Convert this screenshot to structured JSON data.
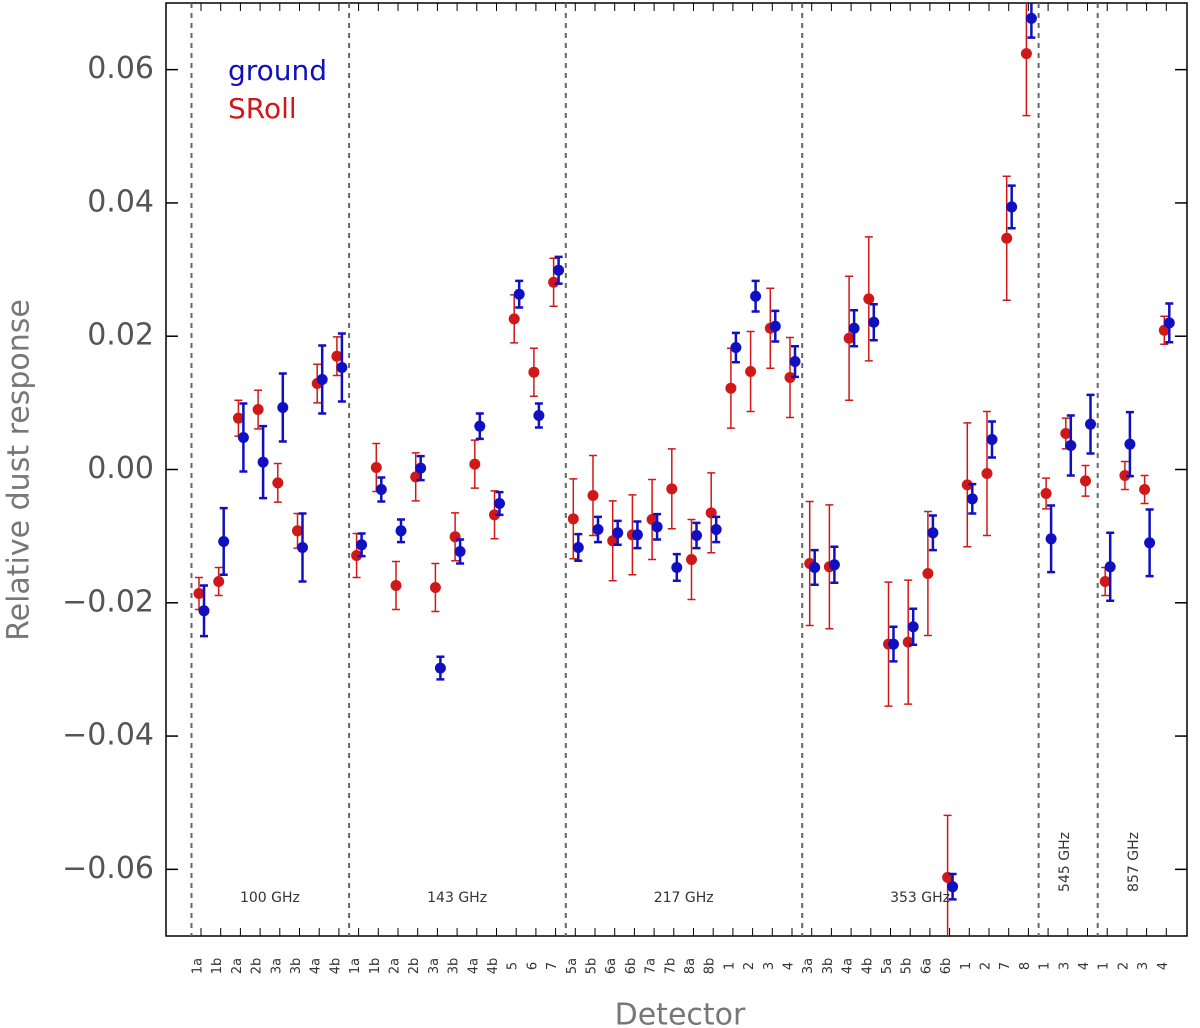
{
  "chart_data": {
    "type": "errorbar",
    "y_label": "Relative dust response",
    "x_label": "Detector",
    "ylim": [
      -0.07,
      0.07
    ],
    "yticks": [
      {
        "value": -0.06,
        "label": "−0.06"
      },
      {
        "value": -0.04,
        "label": "−0.04"
      },
      {
        "value": -0.02,
        "label": "−0.02"
      },
      {
        "value": 0,
        "label": "0.00"
      },
      0.02,
      0.04,
      0.06
    ],
    "groups": [
      {
        "label": "100 GHz",
        "categories": [
          "1a",
          "1b",
          "2a",
          "2b",
          "3a",
          "3b",
          "4a",
          "4b"
        ]
      },
      {
        "label": "143 GHz",
        "categories": [
          "1a",
          "1b",
          "2a",
          "2b",
          "3a",
          "3b",
          "4a",
          "4b",
          "5",
          "6",
          "7"
        ]
      },
      {
        "label": "217 GHz",
        "categories": [
          "5a",
          "5b",
          "6a",
          "6b",
          "7a",
          "7b",
          "8a",
          "8b",
          "1",
          "2",
          "3",
          "4"
        ]
      },
      {
        "label": "353 GHz",
        "categories": [
          "3a",
          "3b",
          "4a",
          "4b",
          "5a",
          "5b",
          "6a",
          "6b",
          "1",
          "2",
          "7",
          "8"
        ]
      },
      {
        "label": "545 GHz",
        "categories": [
          "1",
          "3",
          "4"
        ]
      },
      {
        "label": "857 GHz",
        "categories": [
          "1",
          "2",
          "3",
          "4"
        ]
      }
    ],
    "series": [
      {
        "name": "SRoll",
        "color": "#d01818",
        "values": [
          -0.0186,
          -0.0168,
          0.0077,
          0.009,
          -0.002,
          -0.0092,
          0.0129,
          0.017,
          -0.0129,
          0.0003,
          -0.0174,
          -0.0011,
          -0.0177,
          -0.0101,
          0.0008,
          -0.0068,
          0.0226,
          0.0146,
          0.0281,
          -0.0074,
          -0.0039,
          -0.0107,
          -0.0098,
          -0.0075,
          -0.0029,
          -0.0135,
          -0.0065,
          0.0122,
          0.0147,
          0.0212,
          0.0138,
          -0.0141,
          -0.0146,
          0.0197,
          0.0256,
          -0.0262,
          -0.0259,
          -0.0156,
          -0.0612,
          -0.0023,
          -0.0006,
          0.0347,
          0.0624,
          -0.0036,
          0.0054,
          -0.0017,
          -0.0168,
          -0.0009,
          -0.003,
          0.0209
        ],
        "errors": [
          0.0024,
          0.0021,
          0.0027,
          0.0029,
          0.0029,
          0.0026,
          0.0029,
          0.0029,
          0.0033,
          0.0036,
          0.0036,
          0.0036,
          0.0036,
          0.0036,
          0.0036,
          0.0036,
          0.0036,
          0.0036,
          0.0036,
          0.006,
          0.006,
          0.006,
          0.006,
          0.006,
          0.006,
          0.006,
          0.006,
          0.006,
          0.006,
          0.006,
          0.006,
          0.0093,
          0.0093,
          0.0093,
          0.0093,
          0.0093,
          0.0093,
          0.0093,
          0.0093,
          0.0093,
          0.0093,
          0.0093,
          0.0093,
          0.0023,
          0.0023,
          0.0023,
          0.0021,
          0.0021,
          0.0021,
          0.0021
        ]
      },
      {
        "name": "ground",
        "color": "#1010c0",
        "values": [
          -0.0212,
          -0.0108,
          0.0048,
          0.0011,
          0.0093,
          -0.0117,
          0.0135,
          0.0153,
          -0.0113,
          -0.003,
          -0.0092,
          0.0002,
          -0.0298,
          -0.0123,
          0.0065,
          -0.0051,
          0.0263,
          0.0081,
          0.0299,
          -0.0117,
          -0.009,
          -0.0095,
          -0.0098,
          -0.0086,
          -0.0147,
          -0.0099,
          -0.009,
          0.0183,
          0.026,
          0.0215,
          0.0162,
          -0.0147,
          -0.0143,
          0.0212,
          0.0221,
          -0.0262,
          -0.0236,
          -0.0095,
          -0.0626,
          -0.0044,
          0.0045,
          0.0394,
          0.0677,
          -0.0104,
          0.0036,
          0.0068,
          -0.0146,
          0.0038,
          -0.011,
          0.022
        ],
        "errors": [
          0.0038,
          0.005,
          0.0051,
          0.0054,
          0.0051,
          0.0051,
          0.0051,
          0.0051,
          0.0017,
          0.0018,
          0.0017,
          0.0018,
          0.0017,
          0.0018,
          0.0019,
          0.0017,
          0.002,
          0.0018,
          0.002,
          0.002,
          0.0019,
          0.0018,
          0.002,
          0.0019,
          0.002,
          0.0019,
          0.0019,
          0.0022,
          0.0023,
          0.0023,
          0.0023,
          0.0026,
          0.0027,
          0.0027,
          0.0027,
          0.0026,
          0.0027,
          0.0026,
          0.0019,
          0.0022,
          0.0027,
          0.0032,
          0.0029,
          0.005,
          0.0045,
          0.0044,
          0.0051,
          0.0048,
          0.005,
          0.0029
        ]
      }
    ]
  }
}
